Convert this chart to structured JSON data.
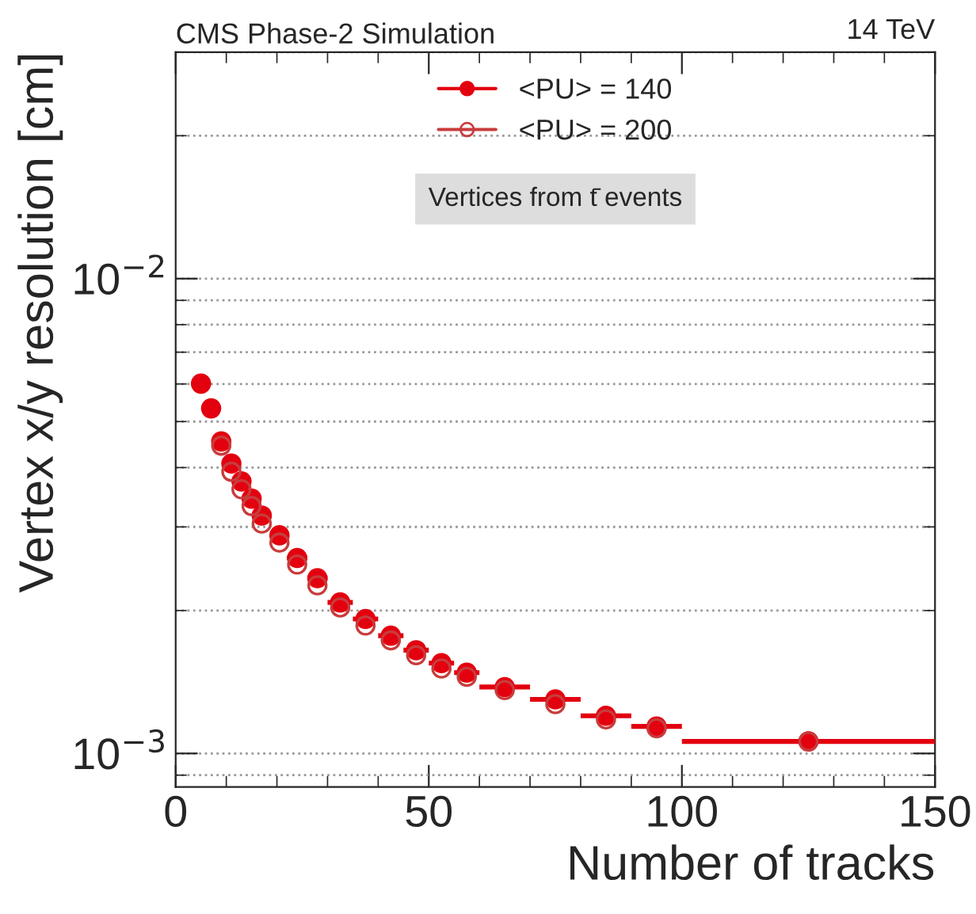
{
  "chart_data": {
    "type": "scatter",
    "title": "CMS Phase-2 Simulation",
    "xlabel": "Number of tracks",
    "ylabel": "Vertex x/y resolution [cm]",
    "annotations": [
      "14 TeV",
      "Vertices from t̄ events"
    ],
    "x": [
      5,
      7,
      9,
      11,
      13,
      15,
      17,
      20.5,
      24,
      28,
      32.5,
      37.5,
      42.5,
      47.5,
      52.5,
      57.5,
      65,
      75,
      85,
      95,
      125
    ],
    "series": [
      {
        "name": "<PU> = 140",
        "color": "#e3000f",
        "values": [
          0.00601,
          0.00533,
          0.00454,
          0.00408,
          0.00374,
          0.00344,
          0.00317,
          0.00288,
          0.00258,
          0.00234,
          0.00208,
          0.00192,
          0.00177,
          0.00165,
          0.00155,
          0.00148,
          0.00138,
          0.0013,
          0.0012,
          0.00114,
          0.00106
        ],
        "xerrors": [
          1,
          1,
          1,
          1,
          1,
          1,
          1,
          1.5,
          2,
          2,
          2.5,
          2.5,
          2.5,
          2.5,
          2.5,
          2.5,
          5,
          5,
          5,
          5,
          25
        ]
      },
      {
        "name": "<PU> = 200",
        "color": "#c83c3c",
        "values": [
          null,
          null,
          0.00445,
          0.00392,
          0.0036,
          0.00332,
          0.00305,
          0.00278,
          0.0025,
          0.00226,
          0.00203,
          0.00186,
          0.00173,
          0.00161,
          0.00151,
          0.00145,
          0.00136,
          0.00127,
          0.00118,
          0.00113,
          0.00106
        ]
      }
    ],
    "log": "y",
    "xlim": [
      0,
      150
    ],
    "xticks": [
      0,
      50,
      100,
      150
    ],
    "ylim": [
      0.00085,
      0.03
    ],
    "yticks": [
      {
        "value": 0.001,
        "label": "10$^{−3}$"
      },
      {
        "value": 0.01,
        "label": "10$^{−2}$"
      }
    ],
    "grid": "y",
    "legend": "top",
    "marker": "circle"
  }
}
